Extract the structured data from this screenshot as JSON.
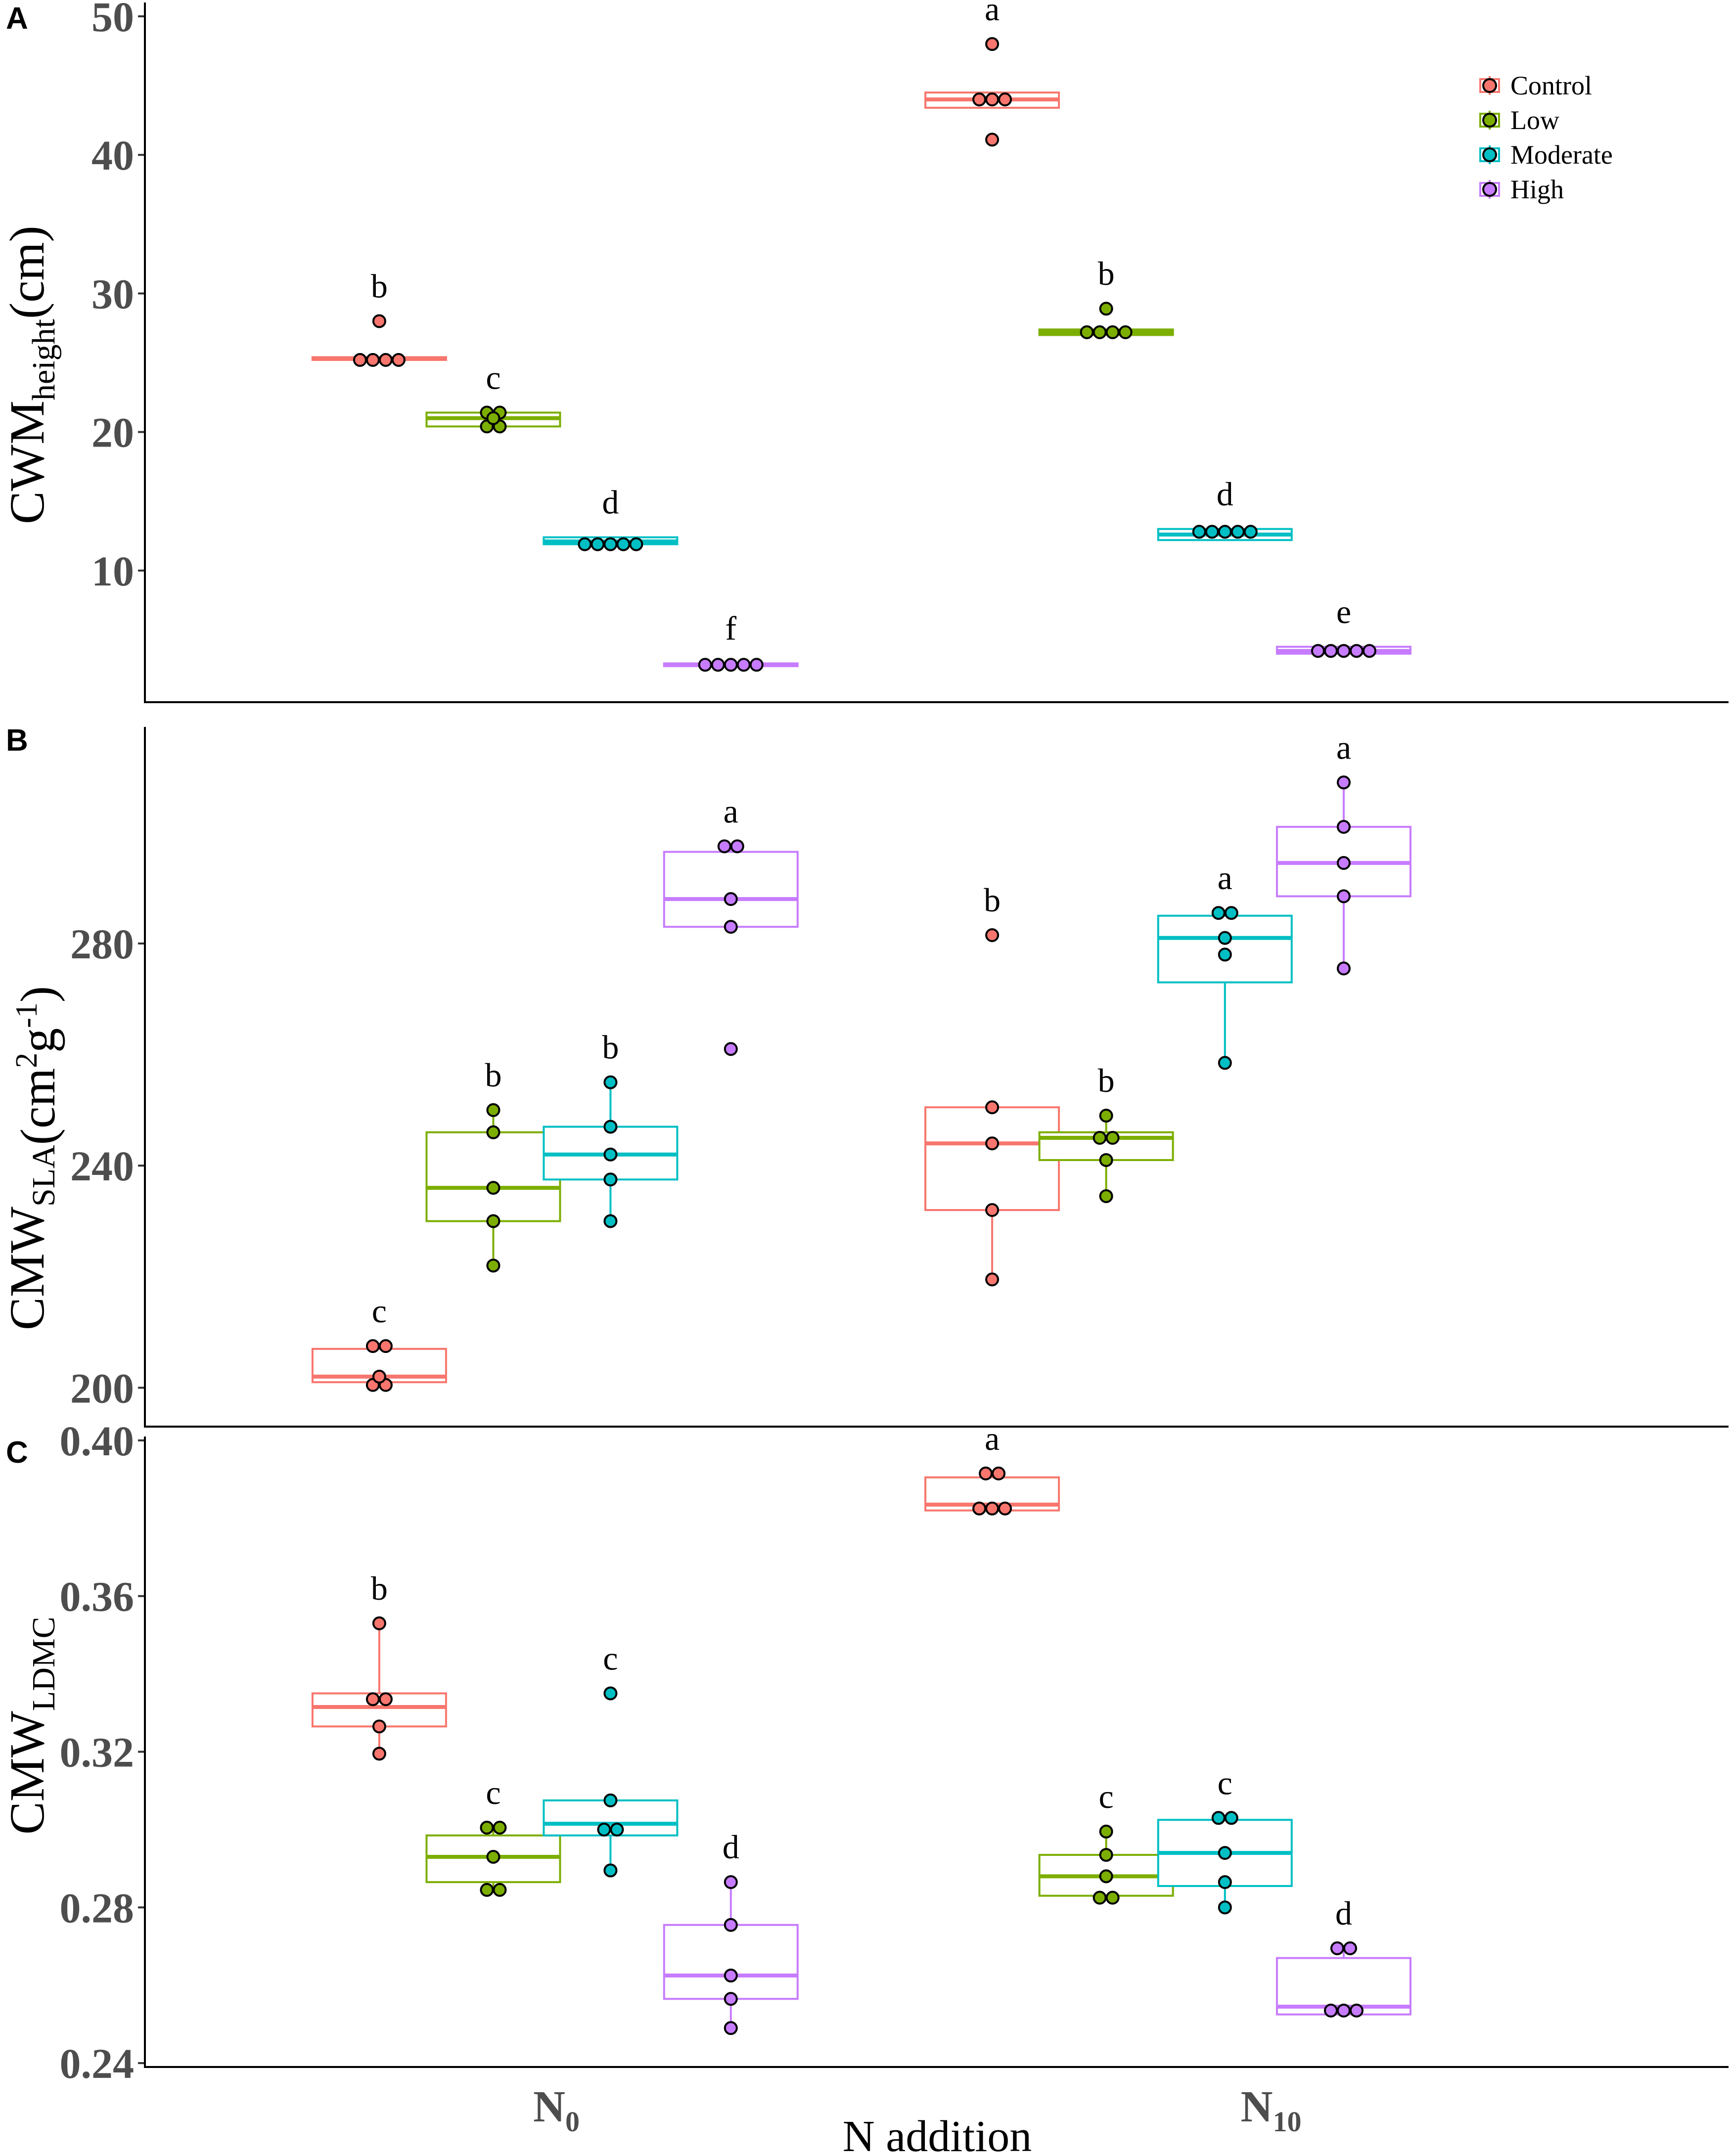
{
  "figure": {
    "x_title": "N addition",
    "x_groups": [
      {
        "main": "N",
        "sub": "0"
      },
      {
        "main": "N",
        "sub": "10"
      }
    ],
    "legend": [
      "Control",
      "Low",
      "Moderate",
      "High"
    ],
    "colors": {
      "Control": "#f8766d",
      "Low": "#7cae00",
      "Moderate": "#00bfc4",
      "High": "#c77cff"
    }
  },
  "chart_data": [
    {
      "type": "box",
      "panel": "A",
      "ylabel_main": "CWM",
      "ylabel_sub": "height",
      "ylabel_unit": "(cm)",
      "yticks": [
        "10",
        "20",
        "30",
        "40",
        "50"
      ],
      "ylim": [
        0.5,
        51
      ],
      "groups": [
        {
          "x": "N0",
          "treatment": "Control",
          "q1": 25.2,
          "median": 25.3,
          "q3": 25.4,
          "whisker_low": 25.2,
          "whisker_high": 25.4,
          "points": [
            25.2,
            25.2,
            25.2,
            25.2,
            28.0
          ],
          "sig": "b"
        },
        {
          "x": "N0",
          "treatment": "Low",
          "q1": 20.4,
          "median": 21.0,
          "q3": 21.4,
          "whisker_low": 20.4,
          "whisker_high": 21.4,
          "points": [
            20.4,
            20.4,
            21.4,
            21.4,
            21.0
          ],
          "sig": "c"
        },
        {
          "x": "N0",
          "treatment": "Moderate",
          "q1": 11.9,
          "median": 12.1,
          "q3": 12.4,
          "whisker_low": 11.9,
          "whisker_high": 12.4,
          "points": [
            11.9,
            11.9,
            11.9,
            11.9,
            11.9
          ],
          "sig": "d"
        },
        {
          "x": "N0",
          "treatment": "High",
          "q1": 3.1,
          "median": 3.2,
          "q3": 3.3,
          "whisker_low": 3.1,
          "whisker_high": 3.3,
          "points": [
            3.2,
            3.2,
            3.2,
            3.2,
            3.2
          ],
          "sig": "f"
        },
        {
          "x": "N10",
          "treatment": "Control",
          "q1": 43.4,
          "median": 44.0,
          "q3": 44.5,
          "whisker_low": 43.4,
          "whisker_high": 44.5,
          "points": [
            44.0,
            44.0,
            44.0,
            41.1,
            48.0
          ],
          "sig": "a"
        },
        {
          "x": "N10",
          "treatment": "Low",
          "q1": 27.0,
          "median": 27.2,
          "q3": 27.4,
          "whisker_low": 27.0,
          "whisker_high": 27.4,
          "points": [
            27.2,
            27.2,
            27.2,
            27.2,
            28.9
          ],
          "sig": "b"
        },
        {
          "x": "N10",
          "treatment": "Moderate",
          "q1": 12.2,
          "median": 12.6,
          "q3": 13.0,
          "whisker_low": 12.2,
          "whisker_high": 13.0,
          "points": [
            12.8,
            12.8,
            12.8,
            12.8,
            12.8
          ],
          "sig": "d"
        },
        {
          "x": "N10",
          "treatment": "High",
          "q1": 4.0,
          "median": 4.2,
          "q3": 4.5,
          "whisker_low": 4.0,
          "whisker_high": 4.5,
          "points": [
            4.2,
            4.2,
            4.2,
            4.2,
            4.2
          ],
          "sig": "e"
        }
      ]
    },
    {
      "type": "box",
      "panel": "B",
      "ylabel_main": "CMW",
      "ylabel_sub": "SLA",
      "ylabel_unit": "(cm2g-1)",
      "yticks": [
        "200",
        "240",
        "280"
      ],
      "ylim": [
        193,
        319
      ],
      "groups": [
        {
          "x": "N0",
          "treatment": "Control",
          "q1": 201,
          "median": 202,
          "q3": 207,
          "whisker_low": 201,
          "whisker_high": 207,
          "points": [
            200.5,
            200.5,
            207.5,
            207.5,
            202
          ],
          "sig": "c"
        },
        {
          "x": "N0",
          "treatment": "Low",
          "q1": 230,
          "median": 236,
          "q3": 246,
          "whisker_low": 222,
          "whisker_high": 250,
          "points": [
            222,
            230,
            236,
            246,
            250
          ],
          "sig": "b"
        },
        {
          "x": "N0",
          "treatment": "Moderate",
          "q1": 237.5,
          "median": 242,
          "q3": 247,
          "whisker_low": 230,
          "whisker_high": 255,
          "points": [
            230,
            237.5,
            247,
            255,
            242
          ],
          "sig": "b"
        },
        {
          "x": "N0",
          "treatment": "High",
          "q1": 283,
          "median": 288,
          "q3": 296.5,
          "whisker_low": 283,
          "whisker_high": 297.5,
          "points": [
            261,
            283,
            288,
            297.5,
            297.5
          ],
          "sig": "a"
        },
        {
          "x": "N10",
          "treatment": "Control",
          "q1": 232,
          "median": 244,
          "q3": 250.5,
          "whisker_low": 219.5,
          "whisker_high": 250.5,
          "points": [
            219.5,
            232,
            244,
            250.5,
            281.5
          ],
          "sig": "b"
        },
        {
          "x": "N10",
          "treatment": "Low",
          "q1": 241,
          "median": 245,
          "q3": 246,
          "whisker_low": 234.5,
          "whisker_high": 249,
          "points": [
            234.5,
            241,
            245,
            245,
            249
          ],
          "sig": "b"
        },
        {
          "x": "N10",
          "treatment": "Moderate",
          "q1": 273,
          "median": 281,
          "q3": 285,
          "whisker_low": 258.5,
          "whisker_high": 285.5,
          "points": [
            258.5,
            278,
            285.5,
            285.5,
            281
          ],
          "sig": "a"
        },
        {
          "x": "N10",
          "treatment": "High",
          "q1": 288.5,
          "median": 294.5,
          "q3": 301,
          "whisker_low": 275.5,
          "whisker_high": 309,
          "points": [
            275.5,
            288.5,
            294.5,
            301,
            309
          ],
          "sig": "a"
        }
      ]
    },
    {
      "type": "box",
      "panel": "C",
      "ylabel_main": "CMW",
      "ylabel_sub": "LDMC",
      "ylabel_unit": "",
      "yticks": [
        "0.24",
        "0.28",
        "0.32",
        "0.36",
        "0.40"
      ],
      "ylim": [
        0.239,
        0.401
      ],
      "groups": [
        {
          "x": "N0",
          "treatment": "Control",
          "q1": 0.3265,
          "median": 0.3315,
          "q3": 0.335,
          "whisker_low": 0.3195,
          "whisker_high": 0.353,
          "points": [
            0.3195,
            0.3265,
            0.3335,
            0.3335,
            0.353
          ],
          "sig": "b"
        },
        {
          "x": "N0",
          "treatment": "Low",
          "q1": 0.2865,
          "median": 0.293,
          "q3": 0.2985,
          "whisker_low": 0.2845,
          "whisker_high": 0.3005,
          "points": [
            0.2845,
            0.2845,
            0.293,
            0.3005,
            0.3005
          ],
          "sig": "c"
        },
        {
          "x": "N0",
          "treatment": "Moderate",
          "q1": 0.2985,
          "median": 0.3015,
          "q3": 0.3075,
          "whisker_low": 0.2895,
          "whisker_high": 0.3075,
          "points": [
            0.2895,
            0.3,
            0.3,
            0.3075,
            0.335
          ],
          "sig": "c"
        },
        {
          "x": "N0",
          "treatment": "High",
          "q1": 0.2565,
          "median": 0.2625,
          "q3": 0.2755,
          "whisker_low": 0.249,
          "whisker_high": 0.2865,
          "points": [
            0.249,
            0.2565,
            0.2625,
            0.2755,
            0.2865
          ],
          "sig": "d"
        },
        {
          "x": "N10",
          "treatment": "Control",
          "q1": 0.382,
          "median": 0.3835,
          "q3": 0.3905,
          "whisker_low": 0.382,
          "whisker_high": 0.3905,
          "points": [
            0.3825,
            0.3825,
            0.3825,
            0.3915,
            0.3915
          ],
          "sig": "a"
        },
        {
          "x": "N10",
          "treatment": "Low",
          "q1": 0.283,
          "median": 0.288,
          "q3": 0.2935,
          "whisker_low": 0.283,
          "whisker_high": 0.2995,
          "points": [
            0.2825,
            0.2825,
            0.288,
            0.2935,
            0.2995
          ],
          "sig": "c"
        },
        {
          "x": "N10",
          "treatment": "Moderate",
          "q1": 0.2855,
          "median": 0.294,
          "q3": 0.3025,
          "whisker_low": 0.28,
          "whisker_high": 0.303,
          "points": [
            0.28,
            0.2865,
            0.303,
            0.303,
            0.294
          ],
          "sig": "c"
        },
        {
          "x": "N10",
          "treatment": "High",
          "q1": 0.2525,
          "median": 0.2545,
          "q3": 0.267,
          "whisker_low": 0.2525,
          "whisker_high": 0.2695,
          "points": [
            0.2535,
            0.2535,
            0.2535,
            0.2695,
            0.2695
          ],
          "sig": "d"
        }
      ]
    }
  ]
}
